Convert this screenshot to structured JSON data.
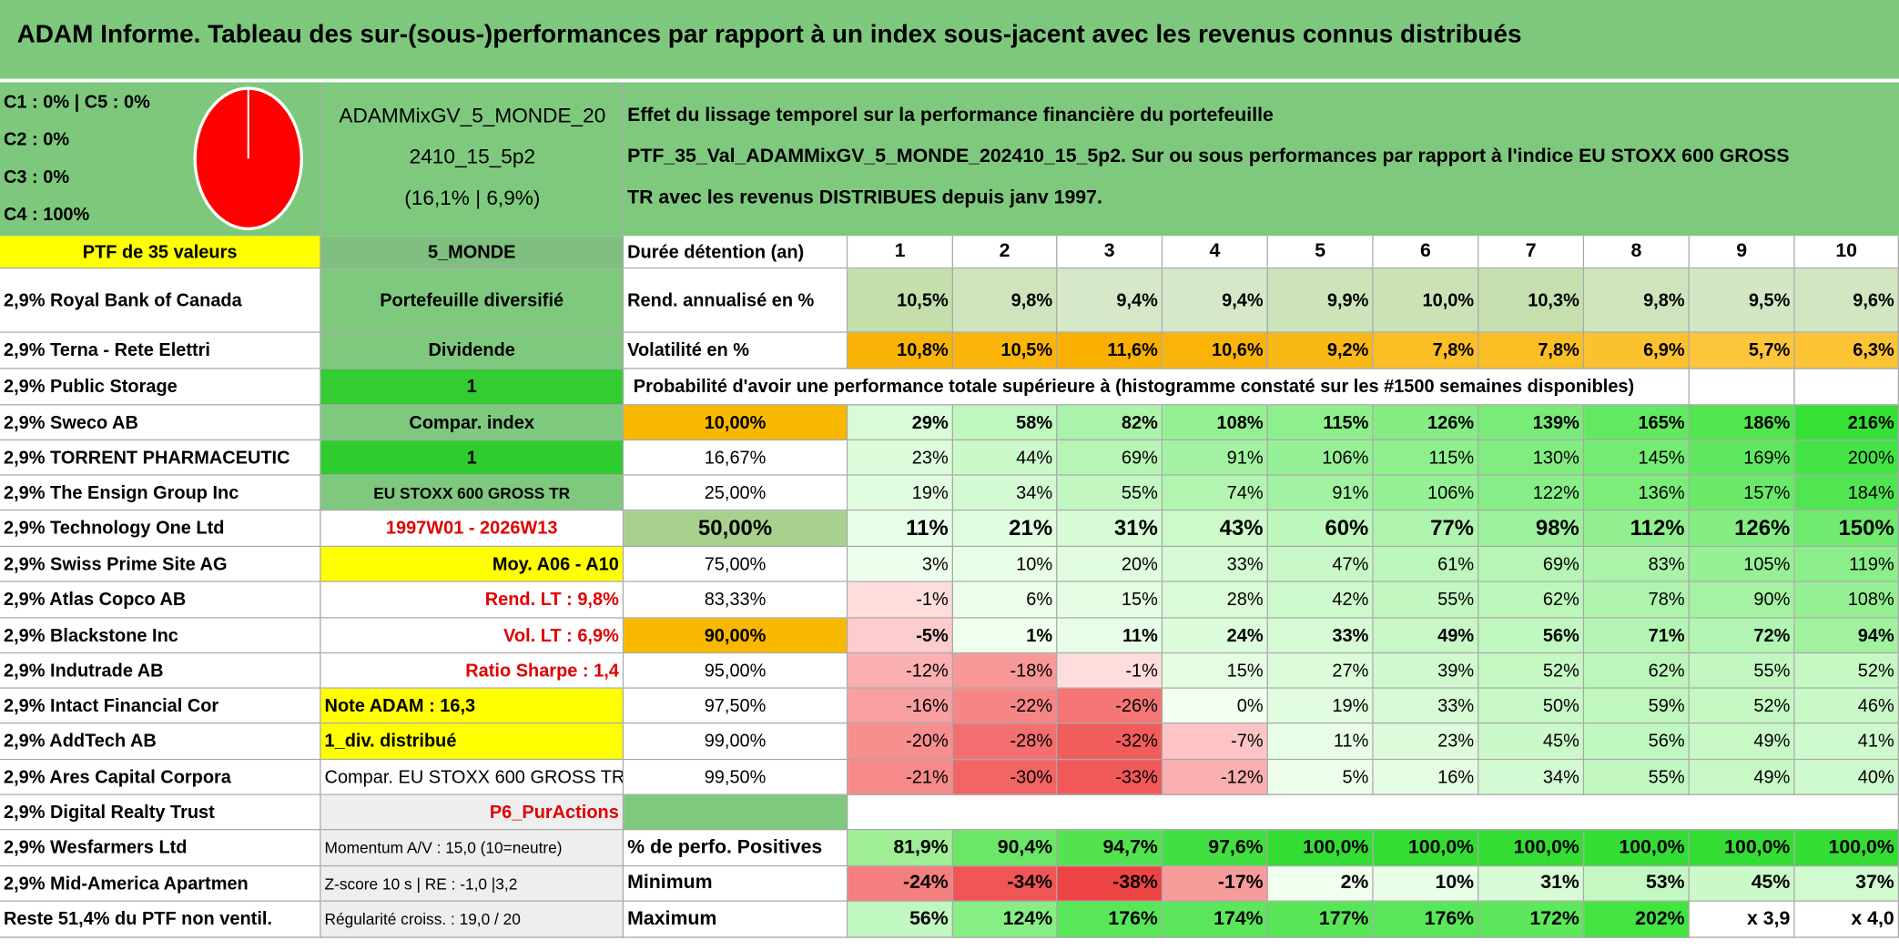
{
  "title": "ADAM Informe. Tableau des sur-(sous-)performances par rapport à un index sous-jacent avec les revenus connus distribués",
  "header": {
    "pie_legend": [
      "C1 : 0% | C5 : 0%",
      "C2 : 0%",
      "C3 : 0%",
      "C4 : 100%"
    ],
    "portfolio": [
      "ADAMMixGV_5_MONDE_20",
      "2410_15_5p2",
      "(16,1% | 6,9%)"
    ],
    "description": [
      "Effet du lissage temporel sur la performance financière du portefeuille",
      "PTF_35_Val_ADAMMixGV_5_MONDE_202410_15_5p2. Sur ou sous performances par rapport à l'indice EU STOXX 600 GROSS",
      "TR avec les revenus DISTRIBUES depuis janv 1997."
    ]
  },
  "table": {
    "rows": [
      {
        "a": "PTF de 35 valeurs",
        "b": "5_MONDE",
        "c": "Durée détention (an)",
        "values": [
          1,
          2,
          3,
          4,
          5,
          6,
          7,
          8,
          9,
          10
        ]
      },
      {
        "a": "2,9% Royal Bank of Canada",
        "b": "Portefeuille diversifié",
        "c": "Rend. annualisé en %",
        "values": [
          "10,5%",
          "9,8%",
          "9,4%",
          "9,4%",
          "9,9%",
          "10,0%",
          "10,3%",
          "9,8%",
          "9,5%",
          "9,6%"
        ]
      },
      {
        "a": "2,9% Terna - Rete Elettri",
        "b": "Dividende",
        "c": "Volatilité en %",
        "values": [
          "10,8%",
          "10,5%",
          "11,6%",
          "10,6%",
          "9,2%",
          "7,8%",
          "7,8%",
          "6,9%",
          "5,7%",
          "6,3%"
        ]
      },
      {
        "a": "2,9% Public Storage",
        "b": 1,
        "span": "Probabilité d'avoir une performance totale supérieure à (histogramme constaté sur les #1500 semaines disponibles)"
      },
      {
        "a": "2,9% Sweco AB",
        "b": "Compar. index",
        "c": "10,00%",
        "values": [
          "29%",
          "58%",
          "82%",
          "108%",
          "115%",
          "126%",
          "139%",
          "165%",
          "186%",
          "216%"
        ]
      },
      {
        "a": "2,9% TORRENT PHARMACEUTIC",
        "b": 1,
        "c": "16,67%",
        "values": [
          "23%",
          "44%",
          "69%",
          "91%",
          "106%",
          "115%",
          "130%",
          "145%",
          "169%",
          "200%"
        ]
      },
      {
        "a": "2,9% The Ensign Group Inc",
        "b": "EU STOXX 600 GROSS TR",
        "c": "25,00%",
        "values": [
          "19%",
          "34%",
          "55%",
          "74%",
          "91%",
          "106%",
          "122%",
          "136%",
          "157%",
          "184%"
        ]
      },
      {
        "a": "2,9% Technology One Ltd",
        "b": "1997W01 - 2026W13",
        "c": "50,00%",
        "values": [
          "11%",
          "21%",
          "31%",
          "43%",
          "60%",
          "77%",
          "98%",
          "112%",
          "126%",
          "150%"
        ]
      },
      {
        "a": "2,9% Swiss Prime Site AG",
        "b": "Moy. A06 - A10",
        "c": "75,00%",
        "values": [
          "3%",
          "10%",
          "20%",
          "33%",
          "47%",
          "61%",
          "69%",
          "83%",
          "105%",
          "119%"
        ]
      },
      {
        "a": "2,9% Atlas Copco AB",
        "b": "Rend. LT : 9,8%",
        "c": "83,33%",
        "values": [
          "-1%",
          "6%",
          "15%",
          "28%",
          "42%",
          "55%",
          "62%",
          "78%",
          "90%",
          "108%"
        ]
      },
      {
        "a": "2,9% Blackstone Inc",
        "b": "Vol. LT : 6,9%",
        "c": "90,00%",
        "values": [
          "-5%",
          "1%",
          "11%",
          "24%",
          "33%",
          "49%",
          "56%",
          "71%",
          "72%",
          "94%"
        ]
      },
      {
        "a": "2,9% Indutrade AB",
        "b": "Ratio Sharpe : 1,4",
        "c": "95,00%",
        "values": [
          "-12%",
          "-18%",
          "-1%",
          "15%",
          "27%",
          "39%",
          "52%",
          "62%",
          "55%",
          "52%"
        ]
      },
      {
        "a": "2,9% Intact Financial Cor",
        "b": "Note ADAM : 16,3",
        "c": "97,50%",
        "values": [
          "-16%",
          "-22%",
          "-26%",
          "0%",
          "19%",
          "33%",
          "50%",
          "59%",
          "52%",
          "46%"
        ]
      },
      {
        "a": "2,9% AddTech AB",
        "b": "1_div. distribué",
        "c": "99,00%",
        "values": [
          "-20%",
          "-28%",
          "-32%",
          "-7%",
          "11%",
          "23%",
          "45%",
          "56%",
          "49%",
          "41%"
        ]
      },
      {
        "a": "2,9% Ares Capital Corpora",
        "b": "Compar. EU STOXX 600 GROSS TR",
        "c": "99,50%",
        "values": [
          "-21%",
          "-30%",
          "-33%",
          "-12%",
          "5%",
          "16%",
          "34%",
          "55%",
          "49%",
          "40%"
        ]
      },
      {
        "a": "2,9% Digital Realty Trust",
        "b": "P6_PurActions"
      },
      {
        "a": "2,9% Wesfarmers Ltd",
        "b": "Momentum A/V : 15,0 (10=neutre)",
        "c": "% de perfo. Positives",
        "values": [
          "81,9%",
          "90,4%",
          "94,7%",
          "97,6%",
          "100,0%",
          "100,0%",
          "100,0%",
          "100,0%",
          "100,0%",
          "100,0%"
        ]
      },
      {
        "a": "2,9% Mid-America Apartmen",
        "b": "Z-score 10 s | RE : -1,0 |3,2",
        "c": "Minimum",
        "values": [
          "-24%",
          "-34%",
          "-38%",
          "-17%",
          "2%",
          "10%",
          "31%",
          "53%",
          "45%",
          "37%"
        ]
      },
      {
        "a": "Reste 51,4% du PTF non ventil.",
        "b": "Régularité croiss. : 19,0 / 20",
        "c": "Maximum",
        "values": [
          "56%",
          "124%",
          "176%",
          "174%",
          "177%",
          "176%",
          "172%",
          "202%",
          "x 3,9",
          "x 4,0"
        ]
      }
    ]
  }
}
